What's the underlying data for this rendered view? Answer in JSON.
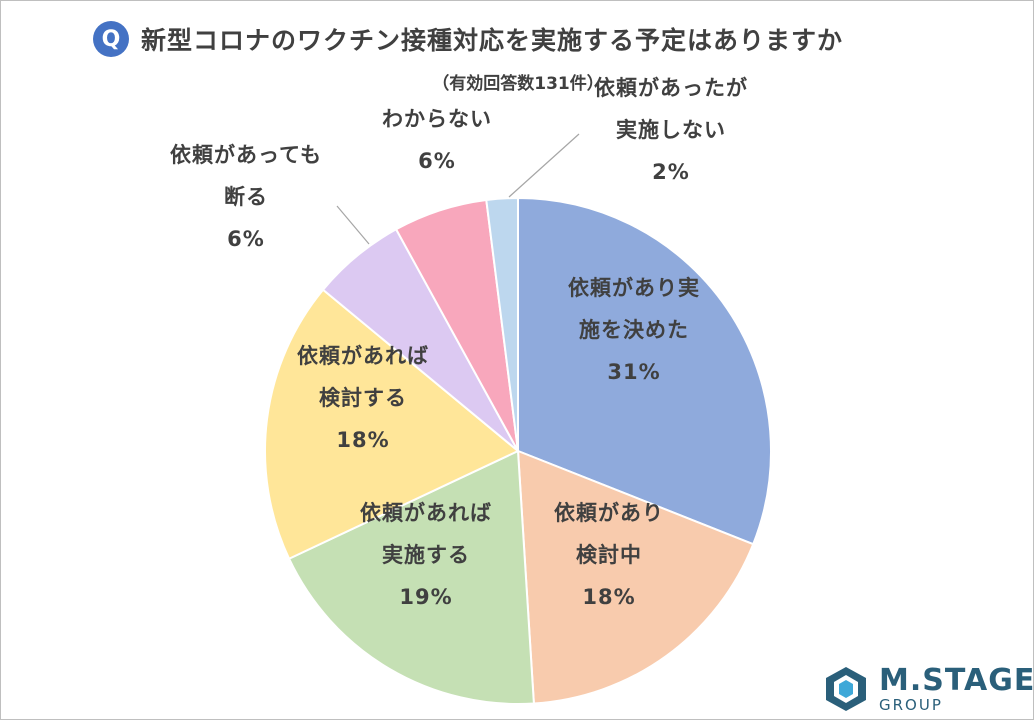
{
  "header": {
    "badge": "Q",
    "title": "新型コロナのワクチン接種対応を実施する予定はありますか",
    "subtitle": "（有効回答数131件）"
  },
  "logo": {
    "main": "M.STAGE",
    "sub": "GROUP"
  },
  "chart_data": {
    "type": "pie",
    "title": "新型コロナのワクチン接種対応を実施する予定はありますか",
    "subtitle": "（有効回答数131件）",
    "slices": [
      {
        "label": [
          "依頼があり実",
          "施を決めた"
        ],
        "value": 31,
        "pct": "31%",
        "color": "#8faadc"
      },
      {
        "label": [
          "依頼があり",
          "検討中"
        ],
        "value": 18,
        "pct": "18%",
        "color": "#f8cbad"
      },
      {
        "label": [
          "依頼があれば",
          "実施する"
        ],
        "value": 19,
        "pct": "19%",
        "color": "#c5e0b4"
      },
      {
        "label": [
          "依頼があれば",
          "検討する"
        ],
        "value": 18,
        "pct": "18%",
        "color": "#ffe699"
      },
      {
        "label": [
          "依頼があっても",
          "断る"
        ],
        "value": 6,
        "pct": "6%",
        "color": "#dcc9f2"
      },
      {
        "label": [
          "わからない"
        ],
        "value": 6,
        "pct": "6%",
        "color": "#f8a7bc"
      },
      {
        "label": [
          "依頼があったが",
          "実施しない"
        ],
        "value": 2,
        "pct": "2%",
        "color": "#bdd7ee"
      }
    ],
    "legend": "none"
  }
}
